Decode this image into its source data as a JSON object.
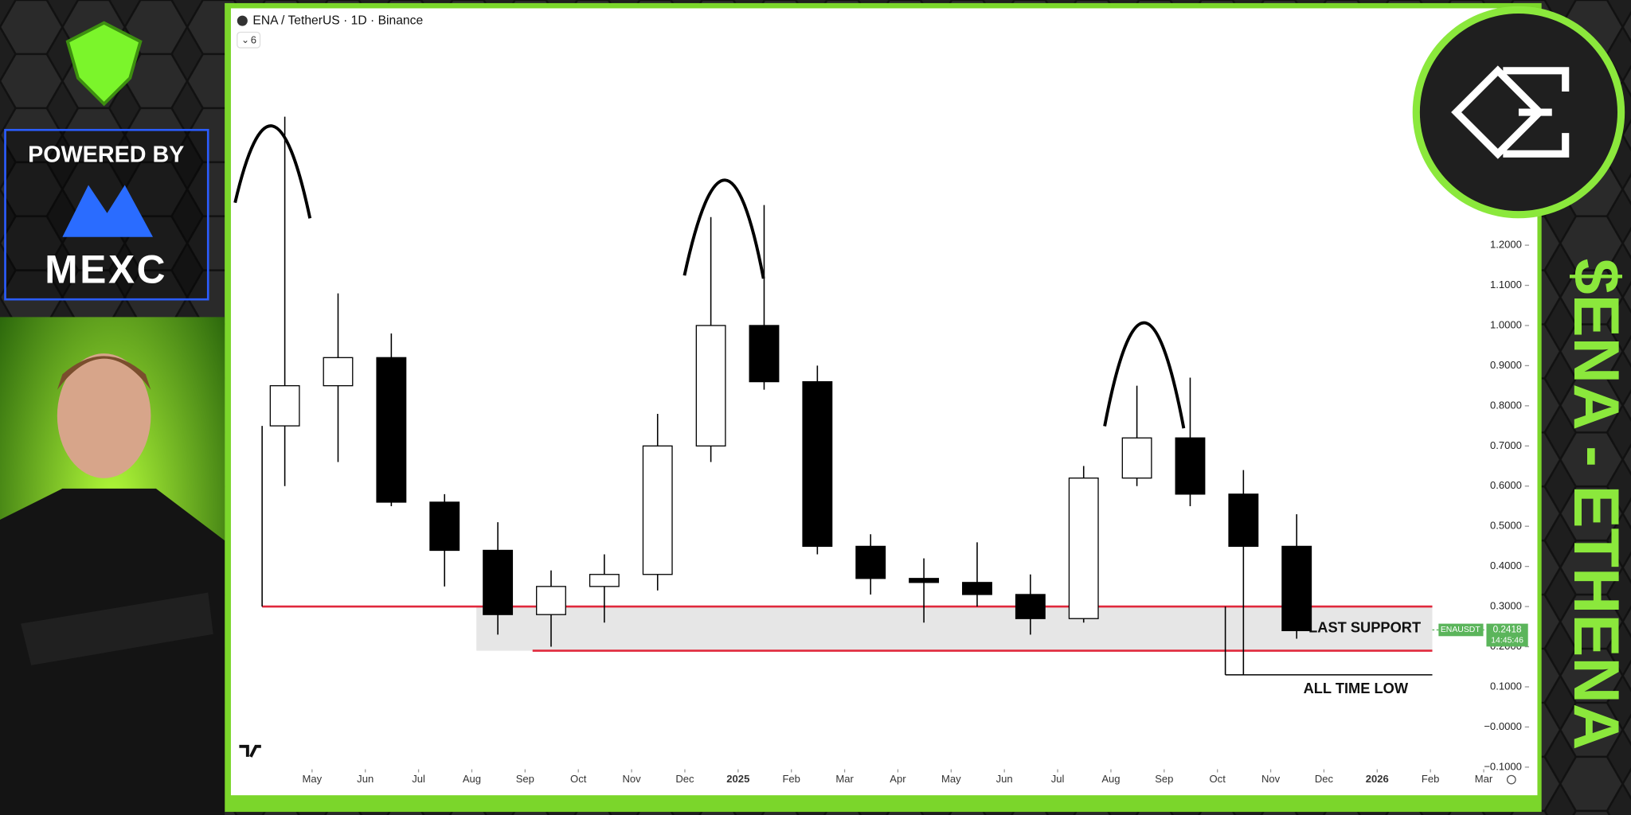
{
  "sidebar": {
    "powered_by": "POWERED BY",
    "brand": "MEXC"
  },
  "banner": "$ENA - ETHENA",
  "chart_data": {
    "type": "candlestick",
    "title": "ENA / TetherUS · 1D · Binance",
    "indicator_count": "6",
    "x": [
      "2024-04",
      "2024-05",
      "2024-06",
      "2024-07",
      "2024-08",
      "2024-09",
      "2024-10",
      "2024-11",
      "2024-12",
      "2025-01",
      "2025-02",
      "2025-03",
      "2025-04",
      "2025-05",
      "2025-06",
      "2025-07",
      "2025-08",
      "2025-09",
      "2025-10",
      "2025-11"
    ],
    "open": [
      0.75,
      0.85,
      0.92,
      0.56,
      0.44,
      0.28,
      0.35,
      0.38,
      0.7,
      1.0,
      0.86,
      0.45,
      0.37,
      0.36,
      0.33,
      0.27,
      0.62,
      0.72,
      0.58,
      0.45
    ],
    "high": [
      1.52,
      1.08,
      0.98,
      0.58,
      0.51,
      0.39,
      0.43,
      0.78,
      1.27,
      1.3,
      0.9,
      0.48,
      0.42,
      0.46,
      0.38,
      0.65,
      0.85,
      0.87,
      0.64,
      0.53
    ],
    "low": [
      0.6,
      0.66,
      0.55,
      0.35,
      0.23,
      0.2,
      0.26,
      0.34,
      0.66,
      0.84,
      0.43,
      0.33,
      0.26,
      0.3,
      0.23,
      0.26,
      0.6,
      0.55,
      0.13,
      0.22
    ],
    "close": [
      0.85,
      0.92,
      0.56,
      0.44,
      0.28,
      0.35,
      0.38,
      0.7,
      1.0,
      0.86,
      0.45,
      0.37,
      0.36,
      0.33,
      0.27,
      0.62,
      0.72,
      0.58,
      0.45,
      0.24
    ],
    "colors": {
      "up": "#ffffff",
      "down": "#000000",
      "outline": "#000000"
    },
    "ylim": [
      -0.17,
      1.79
    ],
    "yticks": [
      {
        "value": -0.1,
        "label": "−0.1000"
      },
      {
        "value": 0,
        "label": "−0.0000"
      },
      {
        "value": 0.1,
        "label": "0.1000"
      },
      {
        "value": 0.2,
        "label": "0.2000"
      },
      {
        "value": 0.3,
        "label": "0.3000"
      },
      {
        "value": 0.4,
        "label": "0.4000"
      },
      {
        "value": 0.5,
        "label": "0.5000"
      },
      {
        "value": 0.6,
        "label": "0.6000"
      },
      {
        "value": 0.7,
        "label": "0.7000"
      },
      {
        "value": 0.8,
        "label": "0.8000"
      },
      {
        "value": 0.9,
        "label": "0.9000"
      },
      {
        "value": 1,
        "label": "1.0000"
      },
      {
        "value": 1.1,
        "label": "1.1000"
      },
      {
        "value": 1.2,
        "label": "1.2000"
      }
    ],
    "xticks": [
      {
        "value": "2024-05",
        "label": "May"
      },
      {
        "value": "2024-06",
        "label": "Jun"
      },
      {
        "value": "2024-07",
        "label": "Jul"
      },
      {
        "value": "2024-08",
        "label": "Aug"
      },
      {
        "value": "2024-09",
        "label": "Sep"
      },
      {
        "value": "2024-10",
        "label": "Oct"
      },
      {
        "value": "2024-11",
        "label": "Nov"
      },
      {
        "value": "2024-12",
        "label": "Dec"
      },
      {
        "value": "2025-01",
        "label": "2025"
      },
      {
        "value": "2025-02",
        "label": "Feb"
      },
      {
        "value": "2025-03",
        "label": "Mar"
      },
      {
        "value": "2025-04",
        "label": "Apr"
      },
      {
        "value": "2025-05",
        "label": "May"
      },
      {
        "value": "2025-06",
        "label": "Jun"
      },
      {
        "value": "2025-07",
        "label": "Jul"
      },
      {
        "value": "2025-08",
        "label": "Aug"
      },
      {
        "value": "2025-09",
        "label": "Sep"
      },
      {
        "value": "2025-10",
        "label": "Oct"
      },
      {
        "value": "2025-11",
        "label": "Nov"
      },
      {
        "value": "2025-12",
        "label": "Dec"
      },
      {
        "value": "2026-01",
        "label": "2026"
      },
      {
        "value": "2026-02",
        "label": "Feb"
      },
      {
        "value": "2026-03",
        "label": "Mar"
      }
    ],
    "grid": false,
    "support": {
      "label": "LAST SUPPORT",
      "high": 0.3,
      "low": 0.19,
      "color": "#e0283c"
    },
    "all_time_low": {
      "label": "ALL TIME LOW",
      "value": 0.13
    },
    "last_price": {
      "symbol": "ENAUSDT",
      "value": 0.2418,
      "countdown": "14:45:46",
      "color": "#5bb55b"
    }
  }
}
